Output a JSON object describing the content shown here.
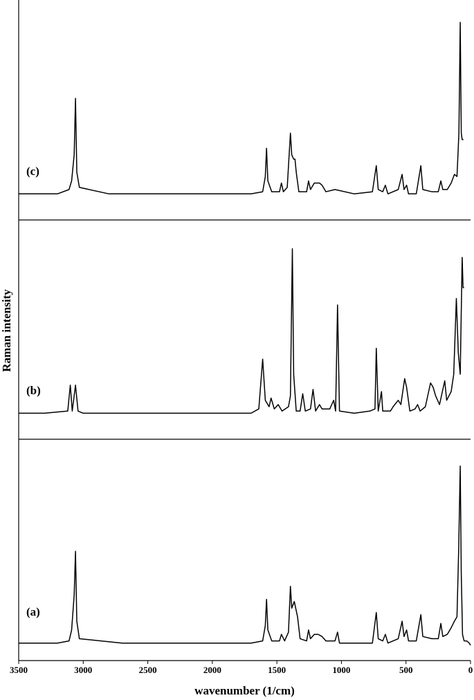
{
  "chart_data": [
    {
      "type": "line",
      "label": "(c)",
      "color": "#000000",
      "xlim": [
        3500,
        0
      ],
      "ylim": [
        0,
        100
      ],
      "x": [
        3500,
        3200,
        3110,
        3090,
        3070,
        3060,
        3050,
        3030,
        2800,
        2200,
        1700,
        1610,
        1590,
        1580,
        1570,
        1540,
        1480,
        1465,
        1450,
        1420,
        1395,
        1385,
        1370,
        1360,
        1350,
        1330,
        1270,
        1255,
        1240,
        1210,
        1190,
        1170,
        1150,
        1120,
        1050,
        900,
        760,
        730,
        715,
        680,
        660,
        640,
        560,
        530,
        515,
        495,
        480,
        420,
        385,
        370,
        300,
        250,
        230,
        215,
        180,
        150,
        125,
        105,
        90,
        80,
        72,
        65,
        55
      ],
      "values": [
        12,
        12,
        14,
        18,
        30,
        56,
        22,
        15,
        12,
        12,
        12,
        13,
        20,
        33,
        18,
        13,
        13,
        17,
        13,
        15,
        40,
        30,
        28,
        28,
        22,
        13,
        13,
        18,
        14,
        17,
        17,
        17,
        16,
        13,
        14,
        12,
        13,
        25,
        14,
        13,
        16,
        12,
        14,
        21,
        14,
        16,
        12,
        12,
        25,
        14,
        13,
        13,
        18,
        14,
        14,
        17,
        21,
        20,
        40,
        91,
        40,
        37,
        37
      ]
    },
    {
      "type": "line",
      "label": "(b)",
      "color": "#000000",
      "xlim": [
        3500,
        0
      ],
      "ylim": [
        0,
        100
      ],
      "ylabel": "Raman intensity",
      "x": [
        3500,
        3300,
        3120,
        3100,
        3085,
        3060,
        3040,
        3000,
        2500,
        2000,
        1700,
        1640,
        1610,
        1590,
        1560,
        1545,
        1520,
        1490,
        1460,
        1410,
        1395,
        1380,
        1370,
        1350,
        1320,
        1300,
        1280,
        1240,
        1220,
        1200,
        1170,
        1150,
        1090,
        1060,
        1045,
        1030,
        1015,
        900,
        780,
        740,
        730,
        715,
        690,
        680,
        620,
        600,
        560,
        540,
        510,
        495,
        470,
        430,
        410,
        390,
        350,
        310,
        290,
        270,
        240,
        200,
        185,
        150,
        130,
        110,
        95,
        80,
        65,
        58,
        50
      ],
      "values": [
        12,
        12,
        13,
        25,
        13,
        25,
        13,
        12,
        12,
        12,
        12,
        14,
        37,
        18,
        15,
        19,
        14,
        16,
        13,
        15,
        20,
        88,
        30,
        13,
        13,
        21,
        13,
        14,
        23,
        13,
        16,
        14,
        14,
        18,
        13,
        62,
        13,
        12,
        13,
        14,
        42,
        13,
        22,
        13,
        13,
        15,
        18,
        16,
        28,
        24,
        13,
        14,
        16,
        13,
        15,
        26,
        24,
        20,
        16,
        27,
        18,
        22,
        30,
        65,
        40,
        30,
        84,
        70,
        70
      ]
    },
    {
      "type": "line",
      "label": "(a)",
      "color": "#000000",
      "xlim": [
        3500,
        0
      ],
      "ylim": [
        0,
        100
      ],
      "xlabel": "wavenumber (1/cm)",
      "xticks": [
        3500,
        3000,
        2500,
        2000,
        1500,
        1000,
        500,
        0
      ],
      "x": [
        3500,
        3200,
        3110,
        3090,
        3070,
        3060,
        3050,
        3030,
        2700,
        2200,
        1700,
        1610,
        1590,
        1580,
        1570,
        1540,
        1480,
        1465,
        1440,
        1410,
        1395,
        1385,
        1365,
        1340,
        1320,
        1270,
        1255,
        1240,
        1210,
        1180,
        1150,
        1120,
        1050,
        1030,
        1015,
        900,
        760,
        730,
        715,
        680,
        660,
        640,
        560,
        530,
        515,
        495,
        480,
        420,
        385,
        370,
        300,
        250,
        230,
        215,
        180,
        150,
        125,
        105,
        92,
        80,
        72,
        62,
        50,
        30,
        10,
        0
      ],
      "values": [
        8,
        8,
        9,
        14,
        30,
        50,
        18,
        10,
        8,
        8,
        8,
        9,
        16,
        28,
        14,
        9,
        9,
        12,
        9,
        13,
        34,
        24,
        27,
        20,
        10,
        9,
        14,
        10,
        12,
        12,
        11,
        9,
        9,
        13,
        8,
        8,
        8,
        22,
        10,
        9,
        12,
        8,
        10,
        18,
        11,
        14,
        9,
        9,
        21,
        11,
        10,
        10,
        17,
        11,
        12,
        15,
        18,
        20,
        50,
        89,
        40,
        12,
        9,
        9,
        8,
        7
      ]
    }
  ]
}
